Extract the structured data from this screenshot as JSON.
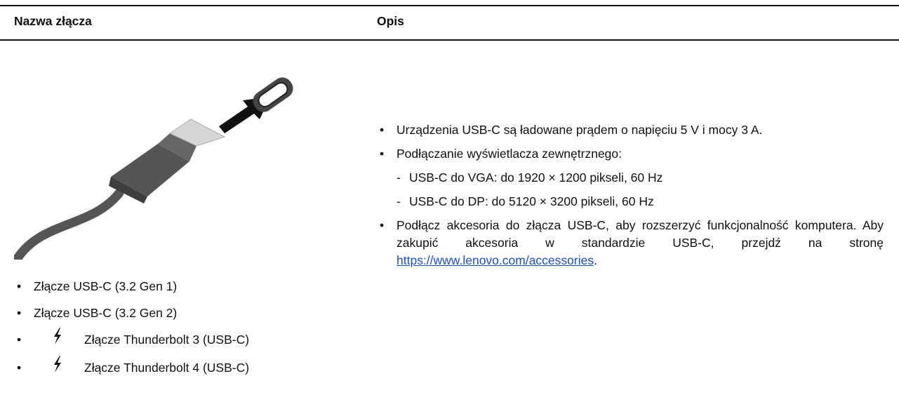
{
  "table": {
    "headers": [
      "Nazwa złącza",
      "Opis"
    ],
    "left": [
      "Złącze USB-C (3.2 Gen 1)",
      "Złącze USB-C (3.2 Gen 2)",
      "Złącze Thunderbolt 3 (USB-C)",
      "Złącze Thunderbolt 4 (USB-C)"
    ],
    "right": [
      "Urządzenia USB-C są ładowane prądem o napięciu 5 V i mocy 3 A.",
      {
        "text": "Podłączanie wyświetlacza zewnętrznego:",
        "sub": [
          "USB-C do VGA: do 1920 × 1200 pikseli, 60 Hz",
          "USB-C do DP: do 5120 × 3200 pikseli, 60 Hz"
        ]
      },
      {
        "text": "Podłącz akcesoria do złącza USB-C, aby rozszerzyć funkcjonalność komputera. Aby zakupić akcesoria w standardzie USB-C, przejdź na stronę ",
        "link": "https://www.lenovo.com/accessories",
        "after": "."
      }
    ]
  }
}
